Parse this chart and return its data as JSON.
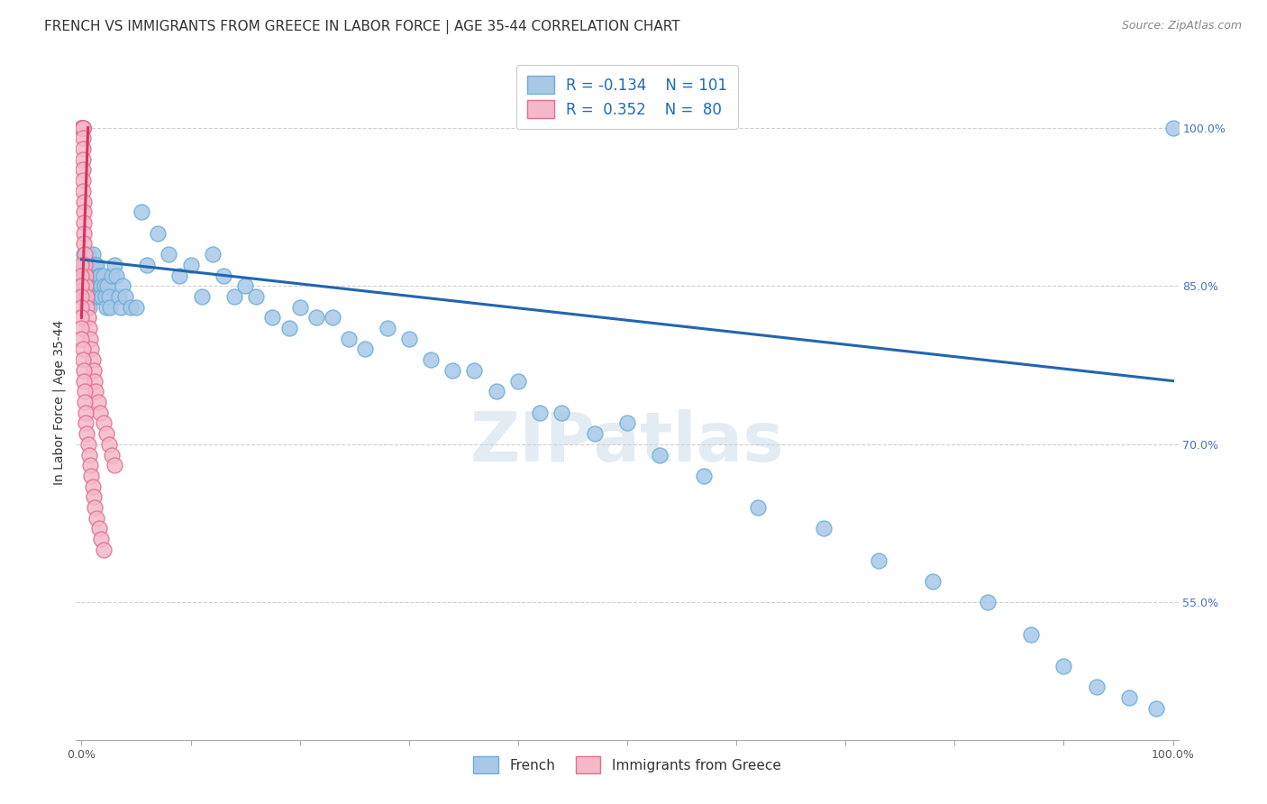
{
  "title": "FRENCH VS IMMIGRANTS FROM GREECE IN LABOR FORCE | AGE 35-44 CORRELATION CHART",
  "source": "Source: ZipAtlas.com",
  "ylabel": "In Labor Force | Age 35-44",
  "watermark": "ZIPatlas",
  "legend_blue_r": "R = -0.134",
  "legend_blue_n": "N = 101",
  "legend_pink_r": "R =  0.352",
  "legend_pink_n": "N =  80",
  "blue_color": "#a8c8e8",
  "blue_edge_color": "#6baed6",
  "pink_color": "#f4b8c8",
  "pink_edge_color": "#e07090",
  "blue_line_color": "#2166ac",
  "pink_line_color": "#d63060",
  "blue_scatter_x": [
    0.001,
    0.001,
    0.001,
    0.002,
    0.002,
    0.002,
    0.003,
    0.003,
    0.004,
    0.004,
    0.004,
    0.005,
    0.005,
    0.005,
    0.006,
    0.006,
    0.006,
    0.007,
    0.007,
    0.007,
    0.008,
    0.008,
    0.009,
    0.009,
    0.01,
    0.01,
    0.01,
    0.011,
    0.011,
    0.012,
    0.012,
    0.013,
    0.013,
    0.014,
    0.014,
    0.015,
    0.015,
    0.016,
    0.016,
    0.017,
    0.018,
    0.019,
    0.02,
    0.021,
    0.022,
    0.023,
    0.024,
    0.025,
    0.026,
    0.028,
    0.03,
    0.032,
    0.034,
    0.036,
    0.038,
    0.04,
    0.045,
    0.05,
    0.055,
    0.06,
    0.07,
    0.08,
    0.09,
    0.1,
    0.11,
    0.12,
    0.13,
    0.14,
    0.15,
    0.16,
    0.175,
    0.19,
    0.2,
    0.215,
    0.23,
    0.245,
    0.26,
    0.28,
    0.3,
    0.32,
    0.34,
    0.36,
    0.38,
    0.4,
    0.42,
    0.44,
    0.47,
    0.5,
    0.53,
    0.57,
    0.62,
    0.68,
    0.73,
    0.78,
    0.83,
    0.87,
    0.9,
    0.93,
    0.96,
    0.985,
    1.0
  ],
  "blue_scatter_y": [
    0.87,
    0.86,
    0.85,
    0.88,
    0.86,
    0.84,
    0.87,
    0.85,
    0.88,
    0.86,
    0.84,
    0.87,
    0.86,
    0.84,
    0.88,
    0.86,
    0.85,
    0.87,
    0.85,
    0.83,
    0.87,
    0.85,
    0.87,
    0.85,
    0.88,
    0.86,
    0.84,
    0.87,
    0.85,
    0.87,
    0.85,
    0.87,
    0.85,
    0.87,
    0.85,
    0.86,
    0.84,
    0.86,
    0.84,
    0.86,
    0.85,
    0.84,
    0.86,
    0.85,
    0.84,
    0.83,
    0.85,
    0.84,
    0.83,
    0.86,
    0.87,
    0.86,
    0.84,
    0.83,
    0.85,
    0.84,
    0.83,
    0.83,
    0.92,
    0.87,
    0.9,
    0.88,
    0.86,
    0.87,
    0.84,
    0.88,
    0.86,
    0.84,
    0.85,
    0.84,
    0.82,
    0.81,
    0.83,
    0.82,
    0.82,
    0.8,
    0.79,
    0.81,
    0.8,
    0.78,
    0.77,
    0.77,
    0.75,
    0.76,
    0.73,
    0.73,
    0.71,
    0.72,
    0.69,
    0.67,
    0.64,
    0.62,
    0.59,
    0.57,
    0.55,
    0.52,
    0.49,
    0.47,
    0.46,
    0.45,
    1.0
  ],
  "pink_scatter_x": [
    0.0002,
    0.0002,
    0.0003,
    0.0003,
    0.0003,
    0.0004,
    0.0004,
    0.0005,
    0.0005,
    0.0006,
    0.0006,
    0.0007,
    0.0007,
    0.0008,
    0.0008,
    0.0009,
    0.001,
    0.001,
    0.001,
    0.001,
    0.0012,
    0.0013,
    0.0014,
    0.0015,
    0.0016,
    0.0017,
    0.0018,
    0.002,
    0.002,
    0.0022,
    0.0025,
    0.003,
    0.003,
    0.0035,
    0.004,
    0.0045,
    0.005,
    0.006,
    0.007,
    0.008,
    0.009,
    0.01,
    0.011,
    0.012,
    0.013,
    0.015,
    0.017,
    0.02,
    0.023,
    0.025,
    0.028,
    0.03,
    0.0,
    0.0,
    0.0,
    0.0,
    0.0,
    0.0,
    0.0,
    0.0,
    0.001,
    0.001,
    0.002,
    0.002,
    0.003,
    0.003,
    0.004,
    0.004,
    0.005,
    0.006,
    0.007,
    0.008,
    0.009,
    0.01,
    0.011,
    0.012,
    0.014,
    0.016,
    0.018,
    0.02
  ],
  "pink_scatter_y": [
    1.0,
    1.0,
    1.0,
    1.0,
    1.0,
    1.0,
    1.0,
    1.0,
    1.0,
    1.0,
    1.0,
    1.0,
    1.0,
    1.0,
    1.0,
    1.0,
    1.0,
    1.0,
    1.0,
    1.0,
    0.99,
    0.98,
    0.97,
    0.96,
    0.95,
    0.94,
    0.93,
    0.92,
    0.91,
    0.9,
    0.89,
    0.88,
    0.87,
    0.86,
    0.85,
    0.84,
    0.83,
    0.82,
    0.81,
    0.8,
    0.79,
    0.78,
    0.77,
    0.76,
    0.75,
    0.74,
    0.73,
    0.72,
    0.71,
    0.7,
    0.69,
    0.68,
    0.87,
    0.86,
    0.85,
    0.84,
    0.83,
    0.82,
    0.81,
    0.8,
    0.79,
    0.78,
    0.77,
    0.76,
    0.75,
    0.74,
    0.73,
    0.72,
    0.71,
    0.7,
    0.69,
    0.68,
    0.67,
    0.66,
    0.65,
    0.64,
    0.63,
    0.62,
    0.61,
    0.6
  ],
  "blue_trendline_x": [
    0.0,
    1.0
  ],
  "blue_trendline_y": [
    0.875,
    0.76
  ],
  "pink_trendline_x": [
    0.0,
    0.006
  ],
  "pink_trendline_y": [
    0.82,
    1.0
  ],
  "ylim": [
    0.42,
    1.06
  ],
  "xlim": [
    -0.005,
    1.005
  ],
  "yticks": [
    0.55,
    0.7,
    0.85,
    1.0
  ],
  "ytick_labels": [
    "55.0%",
    "70.0%",
    "85.0%",
    "100.0%"
  ],
  "grid_color": "#d0d0d0",
  "bg_color": "#ffffff",
  "title_fontsize": 11,
  "source_fontsize": 9,
  "ylabel_fontsize": 10,
  "tick_fontsize": 9,
  "legend_fontsize": 12,
  "tick_color": "#4472C4"
}
